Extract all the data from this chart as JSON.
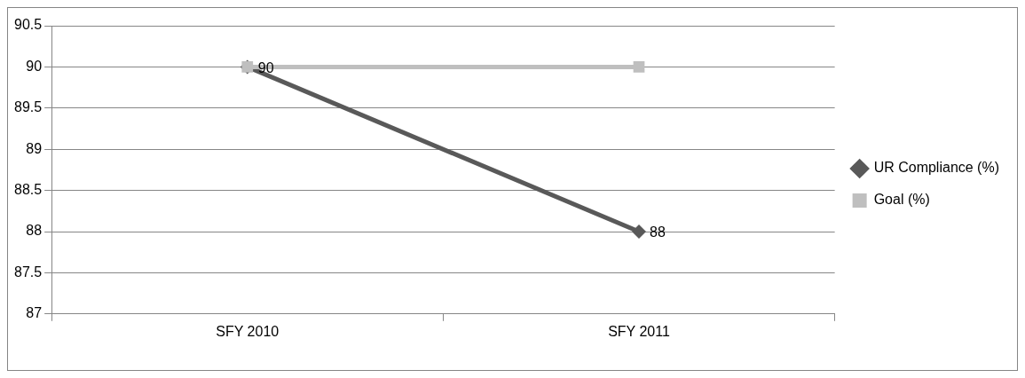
{
  "chart_data": {
    "type": "line",
    "categories": [
      "SFY 2010",
      "SFY 2011"
    ],
    "series": [
      {
        "name": "UR Compliance (%)",
        "color": "#595959",
        "values": [
          90,
          88
        ],
        "marker": "diamond",
        "value_labels": [
          "90",
          "88"
        ]
      },
      {
        "name": "Goal (%)",
        "color": "#bfbfbf",
        "values": [
          90,
          90
        ],
        "marker": "square"
      }
    ],
    "ylim": [
      87,
      90.5
    ],
    "yticks": [
      87,
      87.5,
      88,
      88.5,
      89,
      89.5,
      90,
      90.5
    ],
    "grid": "y",
    "legend": "right",
    "line_style": "solid"
  }
}
